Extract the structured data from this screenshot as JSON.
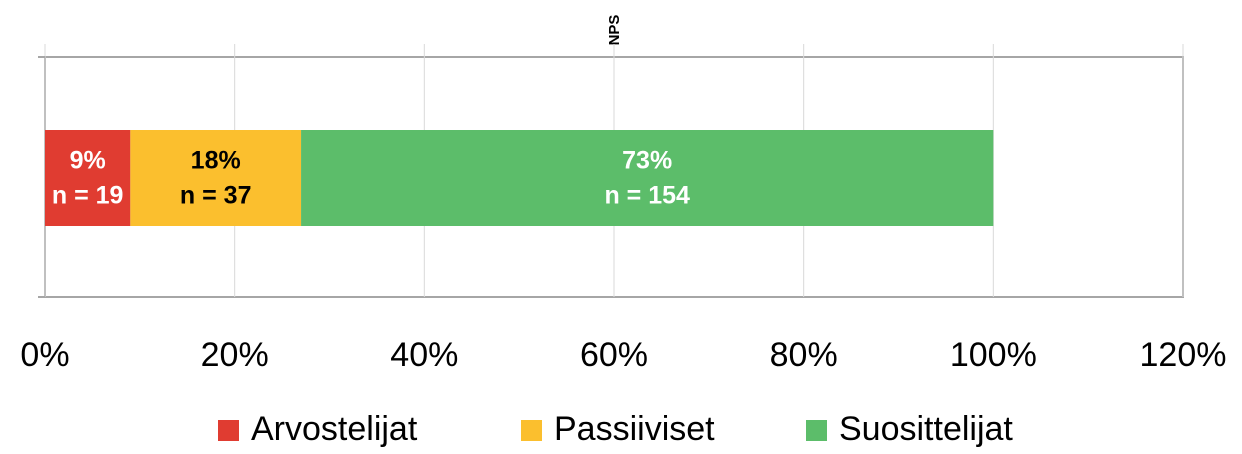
{
  "chart_data": {
    "type": "stacked_bar_horizontal",
    "title": "NPS",
    "series": [
      {
        "name": "Arvostelijat",
        "color": "#e03c31",
        "text_color": "#ffffff",
        "values": [
          9
        ],
        "value_labels": [
          "9%"
        ],
        "count_labels": [
          "n = 19"
        ]
      },
      {
        "name": "Passiiviset",
        "color": "#fbbf2e",
        "text_color": "#000000",
        "values": [
          18
        ],
        "value_labels": [
          "18%"
        ],
        "count_labels": [
          "n = 37"
        ]
      },
      {
        "name": "Suosittelijat",
        "color": "#5cbd6a",
        "text_color": "#ffffff",
        "values": [
          73
        ],
        "value_labels": [
          "73%"
        ],
        "count_labels": [
          "n = 154"
        ]
      }
    ],
    "xlim": [
      0,
      120
    ],
    "xticks": [
      {
        "value": 0,
        "label": "0%"
      },
      {
        "value": 20,
        "label": "20%"
      },
      {
        "value": 40,
        "label": "40%"
      },
      {
        "value": 60,
        "label": "60%"
      },
      {
        "value": 80,
        "label": "80%"
      },
      {
        "value": 100,
        "label": "100%"
      },
      {
        "value": 120,
        "label": "120%"
      }
    ],
    "grid": true,
    "legend": "bottom"
  }
}
